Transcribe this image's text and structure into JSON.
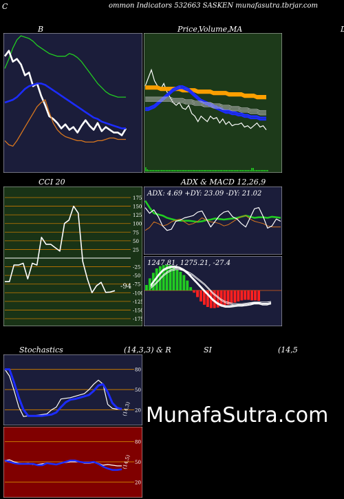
{
  "header": {
    "left_letter": "C",
    "title": "ommon  Indicators 532663 SASKEN  munafasutra.tbrjar.com"
  },
  "panels": {
    "bollinger": {
      "title": "B"
    },
    "price": {
      "title_a": "Price,",
      "title_b": "Volume,",
      "title_c": "MA"
    },
    "right_stub": {
      "title": "D"
    },
    "cci": {
      "title": "CCI 20",
      "current_label": "-94"
    },
    "adx": {
      "title": "ADX  & MACD 12,26,9",
      "readout": "ADX: 4.69 +DY: 23.09 -DY: 21.02"
    },
    "macd": {
      "readout": "1247.81,  1275.21,  -27.4"
    },
    "stoch": {
      "title_left": "Stochastics",
      "title_mid": "(14,3,3) & R",
      "title_si": "SI",
      "title_right": "(14,5",
      "side_label": "(14,3)"
    },
    "rsi": {
      "side_label": "(14,5)"
    }
  },
  "watermark": "MunafaSutra.com",
  "colors": {
    "navy_bg": "#1b1d3a",
    "green_bg": "#1d3a1a",
    "cci_bg": "#193316",
    "rsi_bg": "#800000",
    "grid_orange": "#c87a00",
    "white": "#ffffff",
    "blue": "#1c2cff",
    "green_line": "#22cc22",
    "orange": "#d9771e"
  },
  "chart_data": [
    {
      "type": "line",
      "name": "bollinger",
      "ylim": [
        0,
        100
      ],
      "series": [
        {
          "name": "",
          "color": "#22cc22",
          "values": [
            75,
            82,
            90,
            96,
            99,
            98,
            97,
            95,
            92,
            90,
            88,
            86,
            85,
            84,
            84,
            84,
            86,
            85,
            83,
            80,
            76,
            72,
            68,
            64,
            61,
            58,
            56,
            55,
            54,
            54,
            54
          ]
        },
        {
          "name": "",
          "color": "#ffffff",
          "values": [
            84,
            88,
            80,
            82,
            78,
            70,
            72,
            62,
            64,
            55,
            48,
            40,
            38,
            35,
            31,
            34,
            30,
            32,
            28,
            33,
            37,
            33,
            30,
            35,
            29,
            32,
            30,
            28,
            28,
            26,
            31
          ]
        },
        {
          "name": "",
          "color": "#1c2cff",
          "values": [
            50,
            51,
            52,
            54,
            57,
            60,
            62,
            63,
            64,
            64,
            63,
            61,
            59,
            57,
            55,
            53,
            51,
            49,
            47,
            45,
            43,
            41,
            39,
            38,
            36,
            35,
            34,
            33,
            32,
            31,
            31
          ]
        },
        {
          "name": "",
          "color": "#d9771e",
          "values": [
            22,
            19,
            18,
            22,
            27,
            32,
            37,
            42,
            47,
            50,
            52,
            43,
            35,
            30,
            27,
            25,
            24,
            23,
            22,
            22,
            21,
            21,
            21,
            22,
            22,
            23,
            24,
            24,
            23,
            23,
            23
          ]
        }
      ]
    },
    {
      "type": "line",
      "name": "price",
      "ylim": [
        0,
        100
      ],
      "series": [
        {
          "name": "",
          "color": "#ffffff",
          "values": [
            62,
            68,
            74,
            66,
            62,
            60,
            64,
            58,
            54,
            50,
            48,
            50,
            46,
            45,
            48,
            42,
            40,
            36,
            40,
            38,
            36,
            40,
            38,
            39,
            35,
            38,
            34,
            36,
            33,
            34,
            34,
            35,
            32,
            33,
            31,
            33,
            35,
            32,
            33,
            30
          ]
        },
        {
          "name": "",
          "color": "#ffa000",
          "values": [
            62,
            62,
            62,
            62,
            62,
            61,
            61,
            61,
            61,
            61,
            61,
            61,
            60,
            60,
            60,
            60,
            60,
            59,
            59,
            59,
            59,
            59,
            58,
            58,
            58,
            58,
            58,
            57,
            57,
            57,
            57,
            57,
            56,
            56,
            56,
            56,
            55,
            55,
            55,
            55
          ]
        },
        {
          "name": "",
          "color": "#1c2cff",
          "values": [
            46,
            46,
            47,
            48,
            50,
            52,
            54,
            56,
            58,
            60,
            61,
            62,
            62,
            61,
            60,
            58,
            56,
            54,
            52,
            51,
            50,
            49,
            48,
            47,
            46,
            45,
            44,
            44,
            43,
            43,
            42,
            42,
            41,
            41,
            40,
            40,
            40,
            39,
            39,
            39
          ]
        },
        {
          "name": "",
          "color": "#c0c0c0",
          "values": [
            54,
            54,
            54,
            54,
            54,
            54,
            54,
            54,
            54,
            53,
            53,
            53,
            53,
            52,
            52,
            52,
            51,
            51,
            51,
            50,
            50,
            50,
            49,
            49,
            49,
            48,
            48,
            48,
            47,
            47,
            47,
            46,
            46,
            46,
            45,
            45,
            45,
            44,
            44,
            44
          ]
        }
      ]
    },
    {
      "type": "line",
      "name": "cci",
      "ylim": [
        -175,
        175
      ],
      "series": [
        {
          "name": "CCI",
          "color": "#ffffff",
          "values": [
            -68,
            -68,
            -20,
            -20,
            -15,
            -60,
            -15,
            -20,
            60,
            40,
            40,
            30,
            20,
            100,
            110,
            150,
            130,
            -10,
            -60,
            -100,
            -80,
            -70,
            -99,
            -98,
            -94
          ]
        }
      ]
    },
    {
      "type": "line",
      "name": "adx",
      "ylim": [
        0,
        100
      ],
      "series": [
        {
          "name": "",
          "color": "#22cc22",
          "values": [
            92,
            80,
            70,
            68,
            66,
            62,
            60,
            58,
            57,
            57,
            57,
            56,
            55,
            56,
            58,
            59,
            61,
            60,
            59,
            60,
            61,
            62,
            64,
            66,
            64,
            62,
            63,
            63,
            62,
            64,
            63,
            62
          ]
        },
        {
          "name": "",
          "color": "#d9771e",
          "values": [
            40,
            45,
            55,
            52,
            48,
            50,
            55,
            58,
            60,
            55,
            50,
            52,
            56,
            62,
            58,
            55,
            54,
            52,
            48,
            50,
            55,
            60,
            64,
            66,
            60,
            56,
            54,
            52,
            48,
            46,
            46,
            46
          ]
        },
        {
          "name": "",
          "color": "#ffffff",
          "values": [
            80,
            70,
            76,
            64,
            48,
            40,
            42,
            56,
            58,
            62,
            64,
            66,
            72,
            74,
            60,
            46,
            56,
            66,
            72,
            74,
            64,
            60,
            52,
            46,
            62,
            78,
            80,
            64,
            44,
            48,
            60,
            56
          ]
        }
      ]
    },
    {
      "type": "bar",
      "name": "macd-histogram",
      "ylim": [
        -60,
        60
      ],
      "values": [
        10,
        22,
        32,
        40,
        44,
        46,
        47,
        46,
        43,
        38,
        34,
        28,
        18,
        6,
        -4,
        -12,
        -20,
        -26,
        -30,
        -32,
        -32,
        -31,
        -29,
        -27,
        -26,
        -24,
        -22,
        -20,
        -18,
        -17,
        -17,
        -18,
        -18,
        -19
      ]
    },
    {
      "type": "line",
      "name": "stochastics",
      "ylim": [
        0,
        100
      ],
      "series": [
        {
          "name": "",
          "color": "#ffffff",
          "values": [
            80,
            70,
            48,
            24,
            10,
            11,
            11,
            12,
            13,
            14,
            20,
            24,
            36,
            37,
            38,
            40,
            42,
            44,
            50,
            58,
            64,
            58,
            28,
            22,
            21,
            22
          ]
        },
        {
          "name": "",
          "color": "#1c2cff",
          "values": [
            80,
            80,
            60,
            38,
            20,
            11,
            11,
            11,
            11,
            12,
            13,
            16,
            24,
            31,
            35,
            36,
            38,
            40,
            42,
            48,
            56,
            58,
            46,
            30,
            23,
            21
          ]
        }
      ]
    },
    {
      "type": "line",
      "name": "rsi",
      "ylim": [
        0,
        100
      ],
      "series": [
        {
          "name": "",
          "color": "#ffffff",
          "values": [
            52,
            53,
            50,
            48,
            47,
            48,
            46,
            46,
            47,
            48,
            47,
            46,
            48,
            49,
            50,
            50,
            50,
            48,
            48,
            49,
            48,
            45,
            46,
            45,
            44,
            44
          ]
        },
        {
          "name": "",
          "color": "#1c2cff",
          "values": [
            52,
            50,
            48,
            47,
            47,
            47,
            47,
            45,
            45,
            48,
            47,
            46,
            48,
            50,
            52,
            52,
            50,
            49,
            49,
            50,
            47,
            43,
            40,
            38,
            38,
            39
          ]
        }
      ]
    }
  ]
}
